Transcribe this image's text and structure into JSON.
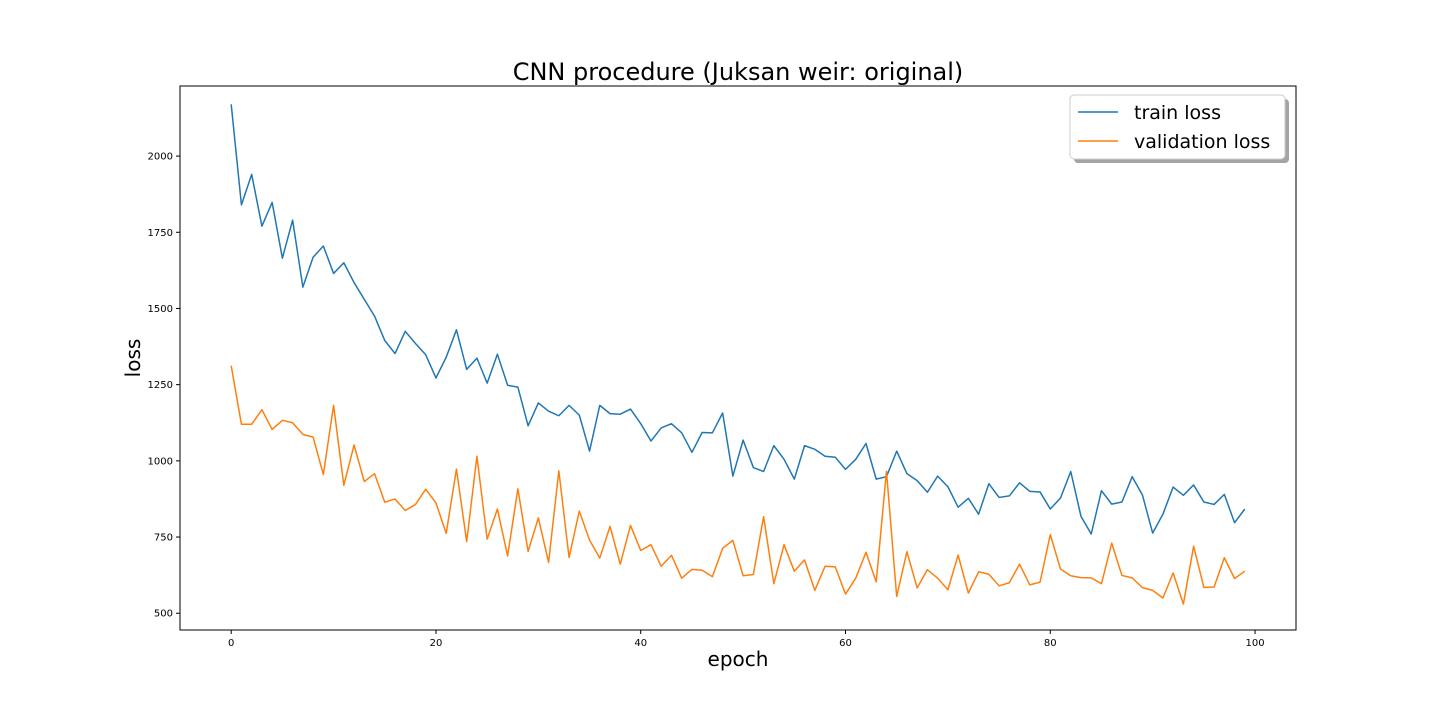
{
  "chart_data": {
    "type": "line",
    "title": "CNN procedure (Juksan weir: original)",
    "xlabel": "epoch",
    "ylabel": "loss",
    "xlim": [
      -5,
      104
    ],
    "ylim": [
      445,
      2230
    ],
    "xticks": [
      0,
      20,
      40,
      60,
      80,
      100
    ],
    "yticks": [
      500,
      750,
      1000,
      1250,
      1500,
      1750,
      2000
    ],
    "grid": false,
    "legend_position": "upper-right",
    "x": [
      0,
      1,
      2,
      3,
      4,
      5,
      6,
      7,
      8,
      9,
      10,
      11,
      12,
      13,
      14,
      15,
      16,
      17,
      18,
      19,
      20,
      21,
      22,
      23,
      24,
      25,
      26,
      27,
      28,
      29,
      30,
      31,
      32,
      33,
      34,
      35,
      36,
      37,
      38,
      39,
      40,
      41,
      42,
      43,
      44,
      45,
      46,
      47,
      48,
      49,
      50,
      51,
      52,
      53,
      54,
      55,
      56,
      57,
      58,
      59,
      60,
      61,
      62,
      63,
      64,
      65,
      66,
      67,
      68,
      69,
      70,
      71,
      72,
      73,
      74,
      75,
      76,
      77,
      78,
      79,
      80,
      81,
      82,
      83,
      84,
      85,
      86,
      87,
      88,
      89,
      90,
      91,
      92,
      93,
      94,
      95,
      96,
      97,
      98,
      99
    ],
    "series": [
      {
        "name": "train loss",
        "color": "#1f77b4",
        "values": [
          2170,
          1840,
          1940,
          1770,
          1848,
          1665,
          1790,
          1570,
          1668,
          1705,
          1615,
          1650,
          1585,
          1530,
          1475,
          1395,
          1352,
          1425,
          1385,
          1348,
          1272,
          1340,
          1430,
          1300,
          1337,
          1255,
          1350,
          1248,
          1242,
          1115,
          1190,
          1163,
          1148,
          1182,
          1150,
          1032,
          1182,
          1155,
          1153,
          1170,
          1122,
          1065,
          1108,
          1122,
          1092,
          1028,
          1093,
          1092,
          1157,
          950,
          1068,
          978,
          965,
          1050,
          1005,
          940,
          1050,
          1038,
          1015,
          1012,
          972,
          1005,
          1057,
          940,
          948,
          1032,
          958,
          935,
          897,
          950,
          915,
          848,
          877,
          825,
          925,
          880,
          885,
          928,
          900,
          898,
          842,
          878,
          965,
          818,
          760,
          902,
          858,
          865,
          948,
          888,
          763,
          825,
          914,
          887,
          921,
          865,
          857,
          890,
          797,
          842
        ]
      },
      {
        "name": "validation loss",
        "color": "#ff7f0e",
        "values": [
          1312,
          1120,
          1120,
          1168,
          1103,
          1133,
          1125,
          1087,
          1078,
          955,
          1182,
          920,
          1052,
          932,
          958,
          864,
          875,
          837,
          857,
          907,
          862,
          762,
          973,
          735,
          1015,
          743,
          842,
          688,
          908,
          703,
          813,
          667,
          967,
          683,
          835,
          740,
          681,
          785,
          661,
          788,
          706,
          725,
          654,
          690,
          615,
          644,
          641,
          620,
          713,
          739,
          623,
          627,
          817,
          597,
          725,
          638,
          675,
          575,
          654,
          652,
          563,
          615,
          700,
          603,
          966,
          555,
          702,
          583,
          643,
          615,
          577,
          691,
          566,
          636,
          628,
          590,
          600,
          661,
          593,
          602,
          758,
          645,
          623,
          617,
          616,
          597,
          730,
          624,
          616,
          584,
          575,
          550,
          632,
          530,
          720,
          585,
          586,
          682,
          614,
          638
        ]
      }
    ]
  }
}
